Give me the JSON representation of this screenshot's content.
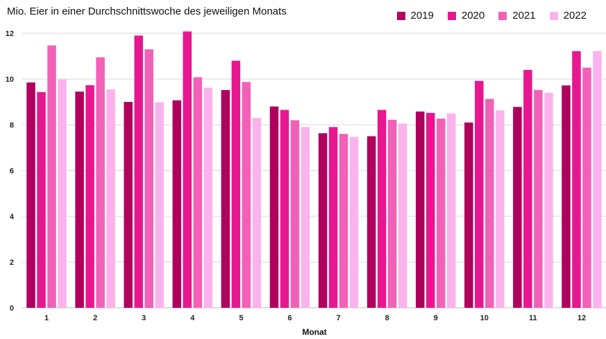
{
  "chart_data": {
    "type": "bar",
    "title": "Mio. Eier in einer Durchschnittswoche des jeweiligen Monats",
    "xlabel": "Monat",
    "ylabel": "",
    "ylim": [
      0,
      12
    ],
    "yticks": [
      0,
      2,
      4,
      6,
      8,
      10,
      12
    ],
    "grid": true,
    "legend_position": "top-right",
    "categories": [
      "1",
      "2",
      "3",
      "4",
      "5",
      "6",
      "7",
      "8",
      "9",
      "10",
      "11",
      "12"
    ],
    "series": [
      {
        "name": "2019",
        "color": "#b0005e",
        "values": [
          9.85,
          9.45,
          9.0,
          9.07,
          9.52,
          8.8,
          7.63,
          7.5,
          8.58,
          8.1,
          8.78,
          9.72
        ]
      },
      {
        "name": "2020",
        "color": "#e8178f",
        "values": [
          9.43,
          9.73,
          11.9,
          12.08,
          10.8,
          8.65,
          7.9,
          8.65,
          8.52,
          9.92,
          10.4,
          11.22
        ]
      },
      {
        "name": "2021",
        "color": "#f261b7",
        "values": [
          11.47,
          10.95,
          11.3,
          10.08,
          9.87,
          8.2,
          7.6,
          8.22,
          8.27,
          9.13,
          9.52,
          10.5
        ]
      },
      {
        "name": "2022",
        "color": "#fbb3ee",
        "values": [
          9.98,
          9.55,
          8.98,
          9.62,
          8.3,
          7.9,
          7.47,
          8.05,
          8.5,
          8.63,
          9.4,
          11.22
        ]
      }
    ]
  }
}
